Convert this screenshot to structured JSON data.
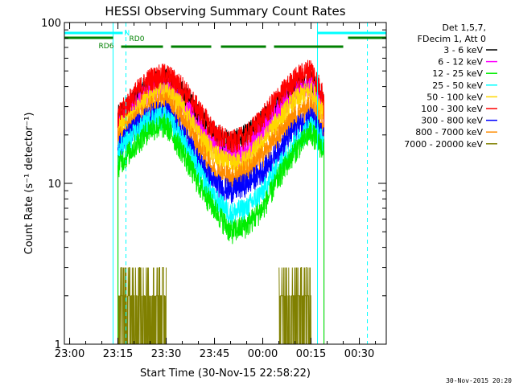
{
  "chart_data": {
    "type": "line",
    "title": "HESSI Observing Summary Count Rates",
    "xlabel": "Start Time (30-Nov-15 22:58:22)",
    "ylabel": "Count Rate (s⁻¹ detector⁻¹)",
    "yscale": "log",
    "ylim": [
      1,
      100
    ],
    "xlim": [
      "22:58:22",
      "00:38:22"
    ],
    "x_ticks": [
      "23:00",
      "23:15",
      "23:30",
      "23:45",
      "00:00",
      "00:15",
      "00:30"
    ],
    "y_ticks": [
      "1",
      "10",
      "100"
    ],
    "legend_header": [
      "Det 1,5,7,",
      "FDecim 1, Att 0"
    ],
    "legend_position": "right",
    "footer_date": "30-Nov-2015 20:20",
    "x": [
      "23:15",
      "23:20",
      "23:25",
      "23:30",
      "23:35",
      "23:40",
      "23:45",
      "23:50",
      "23:55",
      "00:00",
      "00:05",
      "00:10",
      "00:15",
      "00:19"
    ],
    "series": [
      {
        "name": "3 - 6 keV",
        "color": "#000000",
        "values": [
          26,
          34,
          42,
          44,
          37,
          27,
          20,
          18,
          20,
          25,
          32,
          40,
          44,
          33
        ]
      },
      {
        "name": "6 - 12 keV",
        "color": "#ff00ff",
        "values": [
          24,
          31,
          38,
          40,
          33,
          23,
          17,
          15,
          16,
          22,
          29,
          37,
          41,
          30
        ]
      },
      {
        "name": "12 - 25 keV",
        "color": "#00ee00",
        "values": [
          13,
          17,
          22,
          23,
          16,
          10,
          7,
          5,
          5.5,
          7,
          11,
          16,
          21,
          16
        ]
      },
      {
        "name": "25 - 50 keV",
        "color": "#00ffff",
        "values": [
          16,
          20,
          25,
          26,
          19,
          12,
          8,
          6.5,
          7,
          9,
          13,
          18,
          23,
          18
        ]
      },
      {
        "name": "50 - 100 keV",
        "color": "#ffd700",
        "values": [
          22,
          28,
          35,
          37,
          30,
          20,
          15,
          13,
          14,
          18,
          25,
          33,
          38,
          28
        ]
      },
      {
        "name": "100 - 300 keV",
        "color": "#ff0000",
        "values": [
          26,
          36,
          45,
          48,
          40,
          29,
          21,
          18,
          20,
          26,
          35,
          45,
          52,
          35
        ]
      },
      {
        "name": "300 - 800 keV",
        "color": "#0000ff",
        "values": [
          17,
          22,
          27,
          28,
          21,
          14,
          10,
          9,
          10,
          12,
          16,
          22,
          26,
          19
        ]
      },
      {
        "name": "800 - 7000 keV",
        "color": "#ff8c00",
        "values": [
          19,
          24,
          30,
          32,
          25,
          17,
          12,
          11,
          12,
          15,
          20,
          26,
          30,
          22
        ]
      },
      {
        "name": "7000 - 20000 keV",
        "color": "#808000",
        "values": [
          1.6,
          1.7,
          1.5,
          1.3,
          null,
          null,
          null,
          null,
          null,
          null,
          1.6,
          1.8,
          1.7,
          null
        ]
      }
    ],
    "flags": [
      {
        "label": "N",
        "color": "#00ffff",
        "spans": [
          [
            "22:58:22",
            "23:16:30"
          ],
          [
            "00:17:00",
            "00:38:22"
          ]
        ]
      },
      {
        "label": "RD0",
        "color": "#008000",
        "spans": [
          [
            "22:58:22",
            "23:13:30"
          ],
          [
            "00:26:30",
            "00:38:22"
          ]
        ]
      },
      {
        "label": "RD6",
        "color": "#008000",
        "spans": [
          [
            "23:16:00",
            "23:29:00"
          ],
          [
            "23:31:30",
            "23:44:00"
          ],
          [
            "23:47:00",
            "00:01:00"
          ],
          [
            "00:03:30",
            "00:25:00"
          ]
        ]
      }
    ],
    "vertical_lines": [
      {
        "time": "23:13:30",
        "color": "#00ffff",
        "style": "solid"
      },
      {
        "time": "23:17:30",
        "color": "#00ffff",
        "style": "dashed"
      },
      {
        "time": "00:17:00",
        "color": "#00ffff",
        "style": "solid"
      },
      {
        "time": "00:32:30",
        "color": "#00ffff",
        "style": "dashed"
      }
    ]
  }
}
